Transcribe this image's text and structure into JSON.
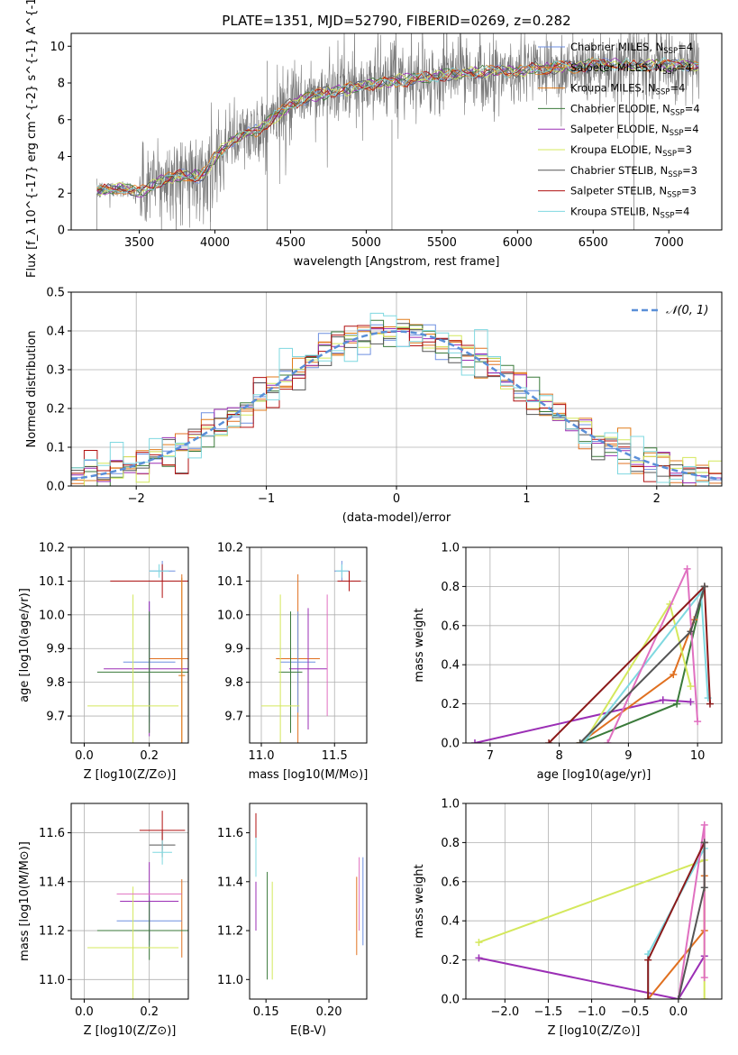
{
  "figure": {
    "title": "PLATE=1351, MJD=52790, FIBERID=0269, z=0.282"
  },
  "colors": {
    "Chabrier MILES": "#6e8fe0",
    "Salpeter MILES": "#e07020",
    "Kroupa MILES": "#e07b1a",
    "Chabrier ELODIE": "#3a7a3a",
    "Salpeter ELODIE": "#9b2fb5",
    "Kroupa ELODIE": "#d4e85c",
    "Chabrier STELIB": "#555555",
    "Salpeter STELIB": "#b01010",
    "Kroupa STELIB": "#7fd8e0",
    "data": "#777777",
    "normal": "#5a8fd8",
    "grid": "#b0b0b0"
  },
  "chart_data": [
    {
      "id": "spectrum",
      "type": "line",
      "xlabel": "wavelength [Angstrom, rest frame]",
      "ylabel": "Flux [f_λ 10^{-17} erg cm^{-2} s^{-1} A^{-1}]",
      "xlim": [
        3050,
        7350
      ],
      "ylim": [
        0,
        10.7
      ],
      "xticks": [
        3500,
        4000,
        4500,
        5000,
        5500,
        6000,
        6500,
        7000
      ],
      "yticks": [
        0,
        2,
        4,
        6,
        8,
        10
      ],
      "grid": false,
      "legend_position": "top-right",
      "legend": [
        {
          "label": "Chabrier MILES, N",
          "sub": "SSP",
          "tail": "=4",
          "color": "#6e8fe0"
        },
        {
          "label": "Salpeter MILES, N",
          "sub": "SSP",
          "tail": "=4",
          "color": "#e07020"
        },
        {
          "label": "Kroupa MILES, N",
          "sub": "SSP",
          "tail": "=4",
          "color": "#e07b1a"
        },
        {
          "label": "Chabrier ELODIE, N",
          "sub": "SSP",
          "tail": "=4",
          "color": "#3a7a3a"
        },
        {
          "label": "Salpeter ELODIE, N",
          "sub": "SSP",
          "tail": "=4",
          "color": "#9b2fb5"
        },
        {
          "label": "Kroupa ELODIE, N",
          "sub": "SSP",
          "tail": "=3",
          "color": "#d4e85c"
        },
        {
          "label": "Chabrier STELIB, N",
          "sub": "SSP",
          "tail": "=3",
          "color": "#555555"
        },
        {
          "label": "Salpeter STELIB, N",
          "sub": "SSP",
          "tail": "=3",
          "color": "#b01010"
        },
        {
          "label": "Kroupa STELIB, N",
          "sub": "SSP",
          "tail": "=4",
          "color": "#7fd8e0"
        }
      ],
      "model_curve": {
        "x": [
          3220,
          3300,
          3400,
          3500,
          3600,
          3700,
          3800,
          3900,
          3950,
          4000,
          4100,
          4200,
          4300,
          4400,
          4500,
          4600,
          4700,
          4800,
          4900,
          5000,
          5100,
          5200,
          5300,
          5400,
          5500,
          5600,
          5700,
          5800,
          5900,
          6000,
          6100,
          6200,
          6300,
          6400,
          6500,
          6600,
          6700,
          6800,
          6900,
          7000,
          7100,
          7200
        ],
        "y": [
          2.1,
          2.2,
          2.3,
          2.0,
          2.5,
          2.8,
          3.0,
          2.9,
          3.2,
          4.0,
          4.8,
          5.2,
          5.5,
          6.2,
          6.8,
          7.2,
          7.4,
          7.6,
          7.7,
          7.9,
          8.0,
          8.1,
          8.2,
          8.3,
          8.4,
          8.5,
          8.6,
          8.6,
          8.7,
          8.6,
          8.8,
          8.8,
          8.9,
          8.9,
          9.0,
          9.0,
          9.0,
          8.9,
          9.0,
          9.0,
          9.0,
          8.9
        ]
      },
      "data_range": [
        3220,
        7200
      ]
    },
    {
      "id": "residuals",
      "type": "histogram",
      "xlabel": "(data-model)/error",
      "ylabel": "Normed distribution",
      "xlim": [
        -2.5,
        2.5
      ],
      "ylim": [
        0,
        0.5
      ],
      "xticks": [
        -2,
        -1,
        0,
        1,
        2
      ],
      "yticks": [
        0,
        0.1,
        0.2,
        0.3,
        0.4,
        0.5
      ],
      "grid": true,
      "legend_position": "top-right",
      "legend": [
        {
          "label": "𝒩(0, 1)",
          "style": "dashed",
          "color": "#5a8fd8"
        }
      ],
      "bin_width": 0.1
    },
    {
      "id": "age_vs_Z",
      "type": "scatter",
      "xlabel": "Z [log10(Z/Z⊙)]",
      "ylabel": "age  [log10(age/yr)]",
      "xlim": [
        -0.04,
        0.32
      ],
      "ylim": [
        9.62,
        10.2
      ],
      "xticks": [
        0.0,
        0.2
      ],
      "yticks": [
        9.7,
        9.8,
        9.9,
        10.0,
        10.1,
        10.2
      ],
      "grid": true,
      "points": [
        {
          "x": 0.24,
          "y": 10.13,
          "xerr": 0.04,
          "yerr": 0.03,
          "color": "#6e8fe0"
        },
        {
          "x": 0.24,
          "y": 10.1,
          "xerr": 0.16,
          "yerr": 0.05,
          "color": "#b01010"
        },
        {
          "x": 0.23,
          "y": 10.13,
          "xerr": 0.03,
          "yerr": 0.02,
          "color": "#7fd8e0"
        },
        {
          "x": 0.3,
          "y": 9.87,
          "xerr": 0.1,
          "yerr": 0.25,
          "color": "#e07020"
        },
        {
          "x": 0.2,
          "y": 9.86,
          "xerr": 0.08,
          "yerr": 0.18,
          "color": "#6e8fe0"
        },
        {
          "x": 0.2,
          "y": 9.84,
          "xerr": 0.14,
          "yerr": 0.2,
          "color": "#9b2fb5"
        },
        {
          "x": 0.2,
          "y": 9.83,
          "xerr": 0.16,
          "yerr": 0.18,
          "color": "#3a7a3a"
        },
        {
          "x": 0.15,
          "y": 9.73,
          "xerr": 0.14,
          "yerr": 0.33,
          "color": "#d4e85c"
        },
        {
          "x": 0.3,
          "y": 9.82,
          "xerr": 0.01,
          "yerr": 0.29,
          "color": "#e07b1a"
        }
      ]
    },
    {
      "id": "age_vs_mass",
      "type": "scatter",
      "xlabel": "mass [log10(M/M⊙)]",
      "ylabel": "",
      "xlim": [
        10.92,
        11.72
      ],
      "ylim": [
        9.62,
        10.2
      ],
      "xticks": [
        11.0,
        11.5
      ],
      "yticks": [
        9.7,
        9.8,
        9.9,
        10.0,
        10.1,
        10.2
      ],
      "grid": true,
      "points": [
        {
          "x": 11.55,
          "y": 10.13,
          "xerr": 0.05,
          "yerr": 0.03,
          "color": "#6e8fe0"
        },
        {
          "x": 11.6,
          "y": 10.1,
          "xerr": 0.08,
          "yerr": 0.03,
          "color": "#b01010"
        },
        {
          "x": 11.55,
          "y": 10.13,
          "xerr": 0.04,
          "yerr": 0.02,
          "color": "#7fd8e0"
        },
        {
          "x": 11.25,
          "y": 9.87,
          "xerr": 0.15,
          "yerr": 0.25,
          "color": "#e07020"
        },
        {
          "x": 11.25,
          "y": 9.86,
          "xerr": 0.12,
          "yerr": 0.15,
          "color": "#6e8fe0"
        },
        {
          "x": 11.32,
          "y": 9.84,
          "xerr": 0.13,
          "yerr": 0.18,
          "color": "#9b2fb5"
        },
        {
          "x": 11.2,
          "y": 9.83,
          "xerr": 0.08,
          "yerr": 0.18,
          "color": "#3a7a3a"
        },
        {
          "x": 11.13,
          "y": 9.73,
          "xerr": 0.13,
          "yerr": 0.33,
          "color": "#d4e85c"
        },
        {
          "x": 11.45,
          "y": 9.88,
          "xerr": 0.0,
          "yerr": 0.18,
          "color": "#e070c0"
        }
      ]
    },
    {
      "id": "massweight_vs_age",
      "type": "line",
      "xlabel": "age  [log10(age/yr)]",
      "ylabel": "mass weight",
      "xlim": [
        6.65,
        10.35
      ],
      "ylim": [
        0,
        1.0
      ],
      "xticks": [
        7,
        8,
        9,
        10
      ],
      "yticks": [
        0.0,
        0.2,
        0.4,
        0.6,
        0.8,
        1.0
      ],
      "grid": true,
      "series": [
        {
          "color": "#9b2fb5",
          "x": [
            6.78,
            9.5,
            9.9
          ],
          "y": [
            0.0,
            0.22,
            0.21
          ]
        },
        {
          "color": "#3a7a3a",
          "x": [
            8.3,
            9.7,
            10.1
          ],
          "y": [
            0.0,
            0.2,
            0.8
          ]
        },
        {
          "color": "#e07020",
          "x": [
            8.3,
            9.65,
            9.95
          ],
          "y": [
            0.0,
            0.35,
            0.63
          ]
        },
        {
          "color": "#d4e85c",
          "x": [
            8.35,
            9.6,
            9.9
          ],
          "y": [
            0.0,
            0.71,
            0.29
          ]
        },
        {
          "color": "#7fd8e0",
          "x": [
            8.35,
            10.05,
            10.15
          ],
          "y": [
            0.0,
            0.77,
            0.23
          ]
        },
        {
          "color": "#e070c0",
          "x": [
            8.7,
            9.85,
            10.0
          ],
          "y": [
            0.0,
            0.89,
            0.11
          ]
        },
        {
          "color": "#8b1a1a",
          "x": [
            7.85,
            10.1,
            10.18
          ],
          "y": [
            0.0,
            0.8,
            0.2
          ]
        },
        {
          "color": "#555555",
          "x": [
            8.3,
            9.9,
            10.1
          ],
          "y": [
            0.0,
            0.57,
            0.8
          ]
        }
      ]
    },
    {
      "id": "mass_vs_Z",
      "type": "scatter",
      "xlabel": "Z [log10(Z/Z⊙)]",
      "ylabel": "mass [log10(M/M⊙)]",
      "xlim": [
        -0.04,
        0.32
      ],
      "ylim": [
        10.92,
        11.72
      ],
      "xticks": [
        0.0,
        0.2
      ],
      "yticks": [
        11.0,
        11.2,
        11.4,
        11.6
      ],
      "grid": true,
      "points": [
        {
          "x": 0.24,
          "y": 11.55,
          "xerr": 0.04,
          "yerr": 0.05,
          "color": "#555555"
        },
        {
          "x": 0.24,
          "y": 11.61,
          "xerr": 0.07,
          "yerr": 0.08,
          "color": "#b01010"
        },
        {
          "x": 0.24,
          "y": 11.52,
          "xerr": 0.03,
          "yerr": 0.05,
          "color": "#7fd8e0"
        },
        {
          "x": 0.3,
          "y": 11.25,
          "xerr": 0.0,
          "yerr": 0.16,
          "color": "#e07020"
        },
        {
          "x": 0.2,
          "y": 11.24,
          "xerr": 0.1,
          "yerr": 0.1,
          "color": "#6e8fe0"
        },
        {
          "x": 0.2,
          "y": 11.32,
          "xerr": 0.09,
          "yerr": 0.16,
          "color": "#9b2fb5"
        },
        {
          "x": 0.2,
          "y": 11.2,
          "xerr": 0.16,
          "yerr": 0.12,
          "color": "#3a7a3a"
        },
        {
          "x": 0.15,
          "y": 11.13,
          "xerr": 0.14,
          "yerr": 0.25,
          "color": "#d4e85c"
        },
        {
          "x": 0.2,
          "y": 11.35,
          "xerr": 0.1,
          "yerr": 0.0,
          "color": "#e070c0"
        }
      ]
    },
    {
      "id": "mass_vs_EBV",
      "type": "scatter",
      "xlabel": "E(B-V)",
      "ylabel": "",
      "xlim": [
        0.137,
        0.23
      ],
      "ylim": [
        10.92,
        11.72
      ],
      "xticks": [
        0.15,
        0.2
      ],
      "yticks": [
        11.0,
        11.2,
        11.4,
        11.6
      ],
      "grid": false,
      "points": [
        {
          "x": 0.142,
          "y": 11.58,
          "yerr": 0.1,
          "color": "#b01010"
        },
        {
          "x": 0.142,
          "y": 11.5,
          "yerr": 0.08,
          "color": "#7fd8e0"
        },
        {
          "x": 0.142,
          "y": 11.3,
          "yerr": 0.1,
          "color": "#9b2fb5"
        },
        {
          "x": 0.151,
          "y": 11.22,
          "yerr": 0.22,
          "color": "#3a7a3a"
        },
        {
          "x": 0.155,
          "y": 11.2,
          "yerr": 0.2,
          "color": "#d4e85c"
        },
        {
          "x": 0.222,
          "y": 11.26,
          "yerr": 0.16,
          "color": "#e07020"
        },
        {
          "x": 0.224,
          "y": 11.35,
          "yerr": 0.15,
          "color": "#e070c0"
        },
        {
          "x": 0.227,
          "y": 11.32,
          "yerr": 0.18,
          "color": "#6e8fe0"
        }
      ]
    },
    {
      "id": "massweight_vs_Z",
      "type": "line",
      "xlabel": "Z [log10(Z/Z⊙)]",
      "ylabel": "mass weight",
      "xlim": [
        -2.45,
        0.5
      ],
      "ylim": [
        0,
        1.0
      ],
      "xticks": [
        -2.0,
        -1.5,
        -1.0,
        -0.5,
        0.0
      ],
      "yticks": [
        0.0,
        0.2,
        0.4,
        0.6,
        0.8,
        1.0
      ],
      "grid": true,
      "series": [
        {
          "color": "#9b2fb5",
          "x": [
            -2.3,
            0.0,
            0.3
          ],
          "y": [
            0.21,
            0.0,
            0.22
          ]
        },
        {
          "color": "#d4e85c",
          "x": [
            -2.3,
            0.3,
            0.3
          ],
          "y": [
            0.29,
            0.71,
            0.0
          ]
        },
        {
          "color": "#e07020",
          "x": [
            -0.35,
            0.3,
            0.3
          ],
          "y": [
            0.0,
            0.35,
            0.63
          ]
        },
        {
          "color": "#7fd8e0",
          "x": [
            -0.35,
            -0.35,
            0.3
          ],
          "y": [
            0.0,
            0.23,
            0.77
          ]
        },
        {
          "color": "#e070c0",
          "x": [
            0.0,
            0.3,
            0.3
          ],
          "y": [
            0.0,
            0.89,
            0.11
          ]
        },
        {
          "color": "#8b1a1a",
          "x": [
            -0.35,
            -0.35,
            0.3
          ],
          "y": [
            0.0,
            0.2,
            0.8
          ]
        },
        {
          "color": "#555555",
          "x": [
            0.0,
            0.3,
            0.3
          ],
          "y": [
            0.0,
            0.57,
            0.8
          ]
        }
      ]
    }
  ]
}
